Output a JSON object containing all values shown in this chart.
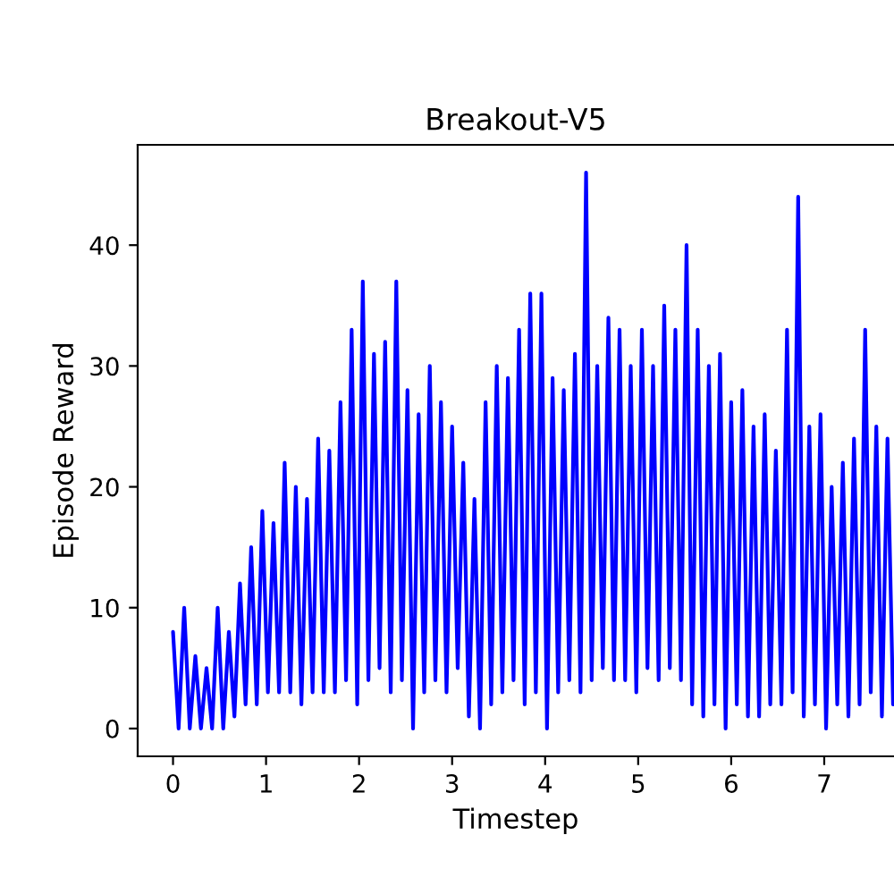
{
  "chart_data": {
    "type": "line",
    "title": "Breakout-V5",
    "xlabel": "Timestep",
    "ylabel": "Episode Reward",
    "xlim": [
      -0.38,
      7.75
    ],
    "xticks": [
      0,
      1,
      2,
      3,
      4,
      5,
      6,
      7
    ],
    "ylim": [
      -2.3,
      48.3
    ],
    "yticks": [
      0,
      10,
      20,
      30,
      40
    ],
    "grid": false,
    "series": [
      {
        "color": "#0000ff",
        "x": [
          0,
          0.06,
          0.12,
          0.18,
          0.24,
          0.3,
          0.36,
          0.42,
          0.48,
          0.54,
          0.6,
          0.66,
          0.72,
          0.78,
          0.84,
          0.9,
          0.96,
          1.02,
          1.08,
          1.14,
          1.2,
          1.26,
          1.32,
          1.38,
          1.44,
          1.5,
          1.56,
          1.62,
          1.68,
          1.74,
          1.8,
          1.86,
          1.92,
          1.98,
          2.04,
          2.1,
          2.16,
          2.22,
          2.28,
          2.34,
          2.4,
          2.46,
          2.52,
          2.58,
          2.64,
          2.7,
          2.76,
          2.82,
          2.88,
          2.94,
          3.0,
          3.06,
          3.12,
          3.18,
          3.24,
          3.3,
          3.36,
          3.42,
          3.48,
          3.54,
          3.6,
          3.66,
          3.72,
          3.78,
          3.84,
          3.9,
          3.96,
          4.02,
          4.08,
          4.14,
          4.2,
          4.26,
          4.32,
          4.38,
          4.44,
          4.5,
          4.56,
          4.62,
          4.68,
          4.74,
          4.8,
          4.86,
          4.92,
          4.98,
          5.04,
          5.1,
          5.16,
          5.22,
          5.28,
          5.34,
          5.4,
          5.46,
          5.52,
          5.58,
          5.64,
          5.7,
          5.76,
          5.82,
          5.88,
          5.94,
          6.0,
          6.06,
          6.12,
          6.18,
          6.24,
          6.3,
          6.36,
          6.42,
          6.48,
          6.54,
          6.6,
          6.66,
          6.72,
          6.78,
          6.84,
          6.9,
          6.96,
          7.02,
          7.08,
          7.14,
          7.2,
          7.26,
          7.32,
          7.38,
          7.44,
          7.5,
          7.56,
          7.62,
          7.68,
          7.74
        ],
        "values": [
          8,
          0,
          10,
          0,
          6,
          0,
          5,
          0,
          10,
          0,
          8,
          1,
          12,
          2,
          15,
          2,
          18,
          3,
          17,
          3,
          22,
          3,
          20,
          2,
          19,
          3,
          24,
          3,
          23,
          3,
          27,
          4,
          33,
          2,
          37,
          4,
          31,
          5,
          32,
          3,
          37,
          4,
          28,
          0,
          26,
          3,
          30,
          4,
          27,
          3,
          25,
          5,
          22,
          1,
          19,
          0,
          27,
          2,
          30,
          3,
          29,
          4,
          33,
          2,
          36,
          3,
          36,
          0,
          29,
          3,
          28,
          4,
          31,
          3,
          46,
          4,
          30,
          5,
          34,
          4,
          33,
          4,
          30,
          3,
          33,
          5,
          30,
          4,
          35,
          5,
          33,
          4,
          40,
          2,
          33,
          1,
          30,
          2,
          31,
          0,
          27,
          2,
          28,
          1,
          25,
          1,
          26,
          2,
          23,
          2,
          33,
          3,
          44,
          1,
          25,
          2,
          26,
          0,
          20,
          2,
          22,
          1,
          24,
          2,
          33,
          3,
          25,
          1,
          24,
          2
        ]
      }
    ]
  }
}
